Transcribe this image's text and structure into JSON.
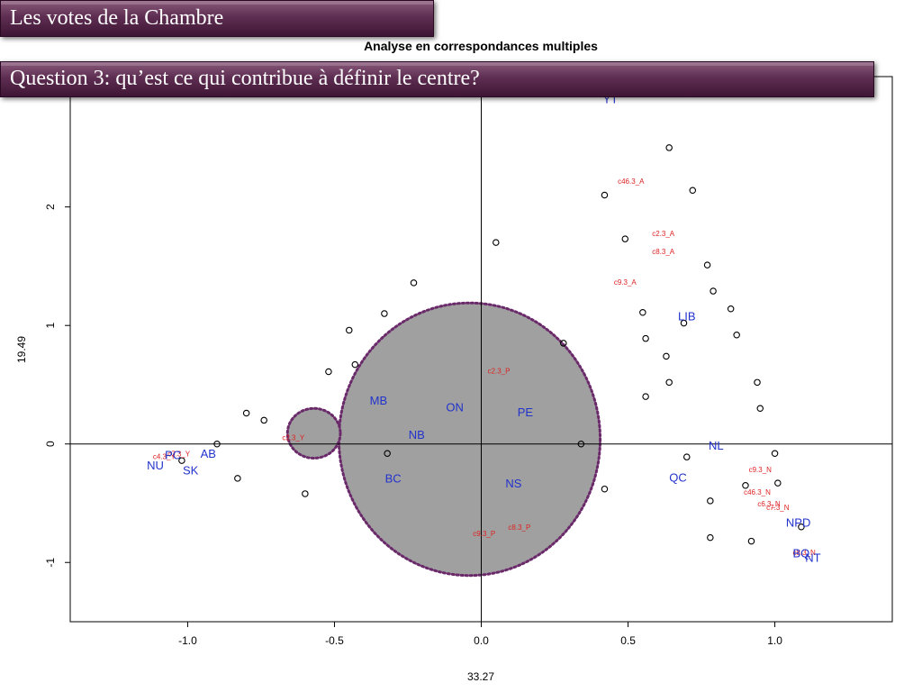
{
  "slide": {
    "title": "Les votes de la Chambre",
    "question": "Question 3: qu’est ce qui contribue à définir le centre?"
  },
  "chart_data": {
    "type": "scatter",
    "title": "Analyse en correspondances multiples",
    "xlabel": "33.27",
    "ylabel": "19.49",
    "xlim": [
      -1.4,
      1.4
    ],
    "ylim": [
      -1.5,
      3.1
    ],
    "xticks": [
      -1.0,
      -0.5,
      0.0,
      0.5,
      1.0
    ],
    "xtick_labels": [
      "-1.0",
      "-0.5",
      "0.0",
      "0.5",
      "1.0"
    ],
    "yticks": [
      -1,
      0,
      1,
      2
    ],
    "ytick_labels": [
      "-1",
      "0",
      "1",
      "2"
    ],
    "reference_lines": {
      "x": 0,
      "y": 0
    },
    "grid": false,
    "colors": {
      "groups": "#2233cc",
      "categories": "#dd2222",
      "points": "#000000",
      "highlight_fill": "#a0a0a0",
      "highlight_border": "#6a2a6a"
    },
    "points": [
      {
        "x": 0.64,
        "y": 2.5
      },
      {
        "x": 0.72,
        "y": 2.14
      },
      {
        "x": 0.42,
        "y": 2.1
      },
      {
        "x": 0.05,
        "y": 1.7
      },
      {
        "x": 0.49,
        "y": 1.73
      },
      {
        "x": 0.77,
        "y": 1.51
      },
      {
        "x": 0.79,
        "y": 1.29
      },
      {
        "x": 0.85,
        "y": 1.14
      },
      {
        "x": 0.55,
        "y": 1.11
      },
      {
        "x": 0.69,
        "y": 1.02
      },
      {
        "x": 0.56,
        "y": 0.89
      },
      {
        "x": 0.87,
        "y": 0.92
      },
      {
        "x": 0.63,
        "y": 0.74
      },
      {
        "x": 0.64,
        "y": 0.52
      },
      {
        "x": 0.56,
        "y": 0.4
      },
      {
        "x": 0.94,
        "y": 0.52
      },
      {
        "x": 0.95,
        "y": 0.3
      },
      {
        "x": 0.28,
        "y": 0.85
      },
      {
        "x": -0.23,
        "y": 1.36
      },
      {
        "x": -0.33,
        "y": 1.1
      },
      {
        "x": -0.45,
        "y": 0.96
      },
      {
        "x": -0.43,
        "y": 0.67
      },
      {
        "x": -0.52,
        "y": 0.61
      },
      {
        "x": -0.8,
        "y": 0.26
      },
      {
        "x": -0.74,
        "y": 0.2
      },
      {
        "x": -0.9,
        "y": 0.0
      },
      {
        "x": 0.34,
        "y": 0.0
      },
      {
        "x": -0.32,
        "y": -0.08
      },
      {
        "x": -0.83,
        "y": -0.29
      },
      {
        "x": -0.6,
        "y": -0.42
      },
      {
        "x": 0.42,
        "y": -0.38
      },
      {
        "x": 0.7,
        "y": -0.11
      },
      {
        "x": 1.0,
        "y": -0.08
      },
      {
        "x": 1.01,
        "y": -0.33
      },
      {
        "x": 0.9,
        "y": -0.35
      },
      {
        "x": 0.78,
        "y": -0.48
      },
      {
        "x": 1.09,
        "y": -0.7
      },
      {
        "x": 0.78,
        "y": -0.79
      },
      {
        "x": 0.92,
        "y": -0.82
      },
      {
        "x": -1.02,
        "y": -0.14
      }
    ],
    "group_labels": [
      {
        "label": "YT",
        "x": 0.44,
        "y": 2.9
      },
      {
        "label": "LIB",
        "x": 0.7,
        "y": 1.07
      },
      {
        "label": "MB",
        "x": -0.35,
        "y": 0.36
      },
      {
        "label": "ON",
        "x": -0.09,
        "y": 0.3
      },
      {
        "label": "PE",
        "x": 0.15,
        "y": 0.26
      },
      {
        "label": "NB",
        "x": -0.22,
        "y": 0.07
      },
      {
        "label": "BC",
        "x": -0.3,
        "y": -0.3
      },
      {
        "label": "NS",
        "x": 0.11,
        "y": -0.34
      },
      {
        "label": "NL",
        "x": 0.8,
        "y": -0.02
      },
      {
        "label": "QC",
        "x": 0.67,
        "y": -0.29
      },
      {
        "label": "NPD",
        "x": 1.08,
        "y": -0.67
      },
      {
        "label": "BQ",
        "x": 1.09,
        "y": -0.93
      },
      {
        "label": "NT",
        "x": 1.13,
        "y": -0.97
      },
      {
        "label": "AB",
        "x": -0.93,
        "y": -0.09
      },
      {
        "label": "PC",
        "x": -1.05,
        "y": -0.1
      },
      {
        "label": "SK",
        "x": -0.99,
        "y": -0.23
      },
      {
        "label": "NU",
        "x": -1.11,
        "y": -0.19
      }
    ],
    "category_labels": [
      {
        "label": "c46.3_A",
        "x": 0.51,
        "y": 2.21
      },
      {
        "label": "c2.3_A",
        "x": 0.62,
        "y": 1.77
      },
      {
        "label": "c8.3_A",
        "x": 0.62,
        "y": 1.62
      },
      {
        "label": "c9.3_A",
        "x": 0.49,
        "y": 1.36
      },
      {
        "label": "c2.3_P",
        "x": 0.06,
        "y": 0.61
      },
      {
        "label": "c2.3_Y",
        "x": -0.64,
        "y": 0.05
      },
      {
        "label": "c7.3_Y",
        "x": -1.03,
        "y": -0.09
      },
      {
        "label": "c9.3_N",
        "x": 0.95,
        "y": -0.22
      },
      {
        "label": "c46.3_N",
        "x": 0.94,
        "y": -0.41
      },
      {
        "label": "c6.3_N",
        "x": 0.98,
        "y": -0.51
      },
      {
        "label": "c7.3_N",
        "x": 1.01,
        "y": -0.54
      },
      {
        "label": "c8.3_P",
        "x": 0.13,
        "y": -0.71
      },
      {
        "label": "c9.3_P",
        "x": 0.01,
        "y": -0.76
      },
      {
        "label": "c8.3_N",
        "x": 1.1,
        "y": -0.92
      },
      {
        "label": "c4.3_Y",
        "x": -1.08,
        "y": -0.11
      }
    ],
    "highlight_regions": [
      {
        "x": -0.04,
        "y": 0.04,
        "rx": 0.445,
        "ry": 1.15
      },
      {
        "x": -0.57,
        "y": 0.09,
        "rx": 0.09,
        "ry": 0.21
      }
    ]
  }
}
